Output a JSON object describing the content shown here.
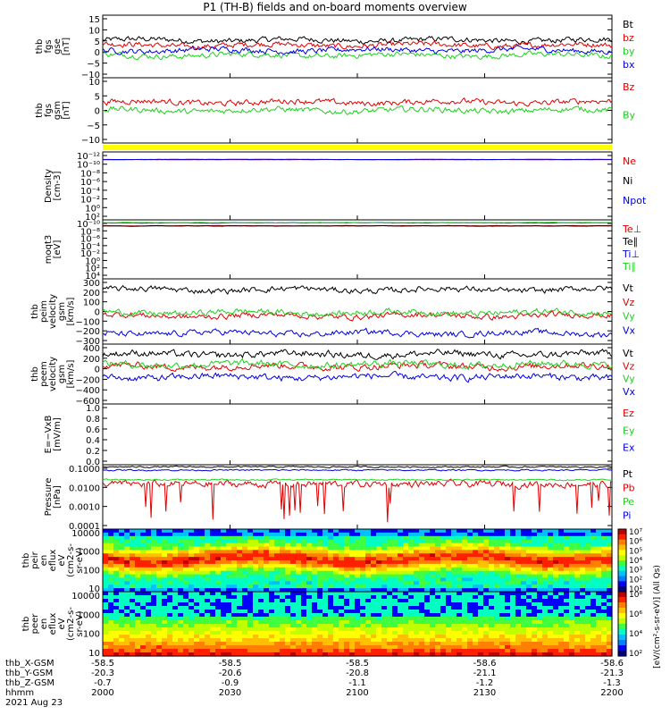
{
  "title": "P1 (TH-B) fields and on-board moments overview",
  "colors": {
    "black": "#000000",
    "red": "#e00000",
    "green": "#20d020",
    "blue": "#0000e0",
    "yellow": "#ffff00"
  },
  "chart_data": [
    {
      "type": "line",
      "panel": "fgs-gse",
      "ylabel": [
        "thb",
        "fgs",
        "gse",
        "[nT]"
      ],
      "yticks": [
        "15",
        "10",
        "5",
        "0",
        "−5",
        "−10"
      ],
      "ylim": [
        -10,
        15
      ],
      "series": [
        {
          "name": "Bt",
          "color": "#000000",
          "level": 5
        },
        {
          "name": "bz",
          "color": "#e00000",
          "level": 3
        },
        {
          "name": "by",
          "color": "#20d020",
          "level": -1
        },
        {
          "name": "bx",
          "color": "#0000e0",
          "level": 1
        }
      ]
    },
    {
      "type": "line",
      "panel": "fgs-gsm",
      "ylabel": [
        "thb",
        "fgs",
        "gsm",
        "[nT]"
      ],
      "yticks": [
        "10",
        "5",
        "0",
        "−5",
        "−10"
      ],
      "ylim": [
        -12,
        12
      ],
      "series": [
        {
          "name": "Bz",
          "color": "#e00000",
          "level": 3
        },
        {
          "name": "By",
          "color": "#20d020",
          "level": 0
        }
      ]
    },
    {
      "type": "line",
      "panel": "density",
      "ylabel": [
        "Density",
        "[cm-3]"
      ],
      "yticks": [
        "10⁻¹²",
        "10⁻¹⁰",
        "10⁻⁸",
        "10⁻⁶",
        "10⁻⁴",
        "10⁻²",
        "10⁰",
        "10²"
      ],
      "ylim": [
        -12,
        2
      ],
      "log": true,
      "series": [
        {
          "name": "Ne",
          "color": "#e00000"
        },
        {
          "name": "Ni",
          "color": "#000000"
        },
        {
          "name": "Npot",
          "color": "#0000e0"
        }
      ]
    },
    {
      "type": "line",
      "panel": "temperature",
      "ylabel": [
        "moqt3",
        "[eV]"
      ],
      "yticks": [
        "10⁻¹⁰",
        "10⁻⁸",
        "10⁻⁶",
        "10⁻⁴",
        "10⁻²",
        "10⁰",
        "10²",
        "10⁴"
      ],
      "ylim": [
        -10,
        4
      ],
      "log": true,
      "series": [
        {
          "name": "Te⊥",
          "color": "#e00000"
        },
        {
          "name": "Te∥",
          "color": "#000000"
        },
        {
          "name": "Ti⊥",
          "color": "#0000e0"
        },
        {
          "name": "Ti∥",
          "color": "#20d020"
        }
      ]
    },
    {
      "type": "line",
      "panel": "peim-velocity",
      "ylabel": [
        "thb",
        "peim",
        "velocity",
        "gsm",
        "[km/s]"
      ],
      "yticks": [
        "300",
        "200",
        "100",
        "0",
        "−100",
        "−200",
        "−300"
      ],
      "ylim": [
        -300,
        300
      ],
      "series": [
        {
          "name": "Vt",
          "color": "#000000",
          "level": 200
        },
        {
          "name": "Vz",
          "color": "#e00000",
          "level": -40
        },
        {
          "name": "Vy",
          "color": "#20d020",
          "level": -10
        },
        {
          "name": "Vx",
          "color": "#0000e0",
          "level": -200
        }
      ]
    },
    {
      "type": "line",
      "panel": "peem-velocity",
      "ylabel": [
        "thb",
        "peem",
        "velocity",
        "gsm",
        "[km/s]"
      ],
      "yticks": [
        "400",
        "200",
        "0",
        "−200",
        "−400",
        "−600"
      ],
      "ylim": [
        -600,
        400
      ],
      "series": [
        {
          "name": "Vt",
          "color": "#000000",
          "level": 230
        },
        {
          "name": "Vz",
          "color": "#e00000",
          "level": 30
        },
        {
          "name": "Vy",
          "color": "#20d020",
          "level": 60
        },
        {
          "name": "Vx",
          "color": "#0000e0",
          "level": -150
        }
      ]
    },
    {
      "type": "line",
      "panel": "efield",
      "ylabel": [
        "E=−VxB",
        "[mV/m]"
      ],
      "yticks": [
        "1.0",
        "0.8",
        "0.6",
        "0.4",
        "0.2",
        "0.0"
      ],
      "ylim": [
        0,
        1
      ],
      "series": [
        {
          "name": "Ez",
          "color": "#e00000"
        },
        {
          "name": "Ey",
          "color": "#20d020"
        },
        {
          "name": "Ex",
          "color": "#0000e0"
        }
      ]
    },
    {
      "type": "line",
      "panel": "pressure",
      "ylabel": [
        "Pressure",
        "[nPa]"
      ],
      "yticks": [
        "0.1000",
        "0.0100",
        "0.0010",
        "0.0001"
      ],
      "ylim": [
        -4,
        -1
      ],
      "log": true,
      "series": [
        {
          "name": "Pt",
          "color": "#000000"
        },
        {
          "name": "Pb",
          "color": "#e00000"
        },
        {
          "name": "Pe",
          "color": "#20d020"
        },
        {
          "name": "Pi",
          "color": "#0000e0"
        }
      ]
    },
    {
      "type": "heatmap",
      "panel": "peir-eflux",
      "ylabel": [
        "thb",
        "peir",
        "en",
        "eflux",
        "eV",
        "(cm2-s-",
        "sr-eV)"
      ],
      "yticks": [
        "10000",
        "1000",
        "100",
        "10"
      ],
      "ylim": [
        5,
        30000
      ],
      "log": true
    },
    {
      "type": "heatmap",
      "panel": "peer-eflux",
      "ylabel": [
        "thb",
        "peer",
        "en",
        "eflux",
        "eV",
        "(cm2-s-",
        "sr-eV)"
      ],
      "yticks": [
        "10000",
        "1000",
        "100",
        "10"
      ],
      "ylim": [
        5,
        30000
      ],
      "log": true
    }
  ],
  "colorbar": {
    "ticks_ion": [
      "10⁷",
      "10⁶",
      "10⁵",
      "10⁴",
      "10³",
      "10²",
      "10¹"
    ],
    "ticks_ele": [
      "10⁸",
      "10⁶",
      "10⁴",
      "10²"
    ],
    "label": "[eV/(cm²-s-sr-eV)] (All Qs)"
  },
  "xaxis": {
    "labels_left": [
      "thb_X-GSM",
      "thb_Y-GSM",
      "thb_Z-GSM",
      "hhmm",
      "2021 Aug 23"
    ],
    "columns": [
      {
        "x": "-58.5",
        "y": "-20.3",
        "z": "-0.7",
        "t": "2000"
      },
      {
        "x": "-58.5",
        "y": "-20.6",
        "z": "-0.9",
        "t": "2030"
      },
      {
        "x": "-58.5",
        "y": "-20.8",
        "z": "-1.1",
        "t": "2100"
      },
      {
        "x": "-58.6",
        "y": "-21.1",
        "z": "-1.2",
        "t": "2130"
      },
      {
        "x": "-58.6",
        "y": "-21.3",
        "z": "-1.3",
        "t": "2200"
      }
    ]
  }
}
